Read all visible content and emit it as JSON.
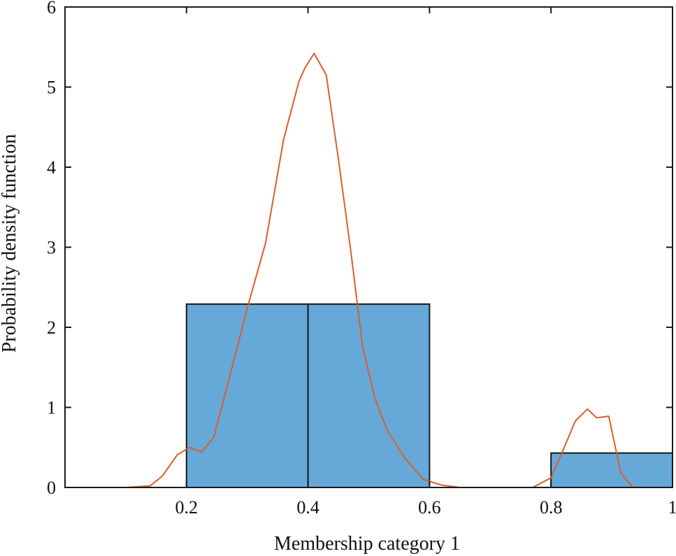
{
  "chart_data": {
    "type": "bar",
    "xlabel": "Membership category 1",
    "ylabel": "Probability density function",
    "xlim": [
      0,
      1
    ],
    "ylim": [
      0,
      6
    ],
    "x_ticks": [
      0.2,
      0.4,
      0.6,
      0.8,
      1
    ],
    "x_tick_labels": [
      "0.2",
      "0.4",
      "0.6",
      "0.8",
      "1"
    ],
    "y_ticks": [
      0,
      1,
      2,
      3,
      4,
      5,
      6
    ],
    "y_tick_labels": [
      "0",
      "1",
      "2",
      "3",
      "4",
      "5",
      "6"
    ],
    "grid": false,
    "histogram": {
      "bins": [
        {
          "from": 0.2,
          "to": 0.4,
          "value": 2.29
        },
        {
          "from": 0.4,
          "to": 0.6,
          "value": 2.29
        },
        {
          "from": 0.8,
          "to": 1.0,
          "value": 0.43
        }
      ],
      "color": "#66a8d8"
    },
    "density_curve": {
      "color": "#d95f2a",
      "x": [
        0,
        0.1,
        0.14,
        0.16,
        0.185,
        0.205,
        0.225,
        0.245,
        0.27,
        0.3,
        0.33,
        0.36,
        0.385,
        0.395,
        0.41,
        0.43,
        0.45,
        0.47,
        0.49,
        0.51,
        0.53,
        0.56,
        0.59,
        0.62,
        0.65,
        0.77,
        0.8,
        0.82,
        0.84,
        0.86,
        0.875,
        0.895,
        0.915,
        0.935,
        1
      ],
      "y": [
        0,
        0,
        0.02,
        0.14,
        0.41,
        0.5,
        0.44,
        0.63,
        1.35,
        2.24,
        3.05,
        4.35,
        5.07,
        5.24,
        5.42,
        5.15,
        4.1,
        2.98,
        1.75,
        1.12,
        0.72,
        0.36,
        0.1,
        0.03,
        0,
        0,
        0.12,
        0.47,
        0.83,
        0.98,
        0.87,
        0.89,
        0.18,
        0,
        0
      ]
    }
  }
}
